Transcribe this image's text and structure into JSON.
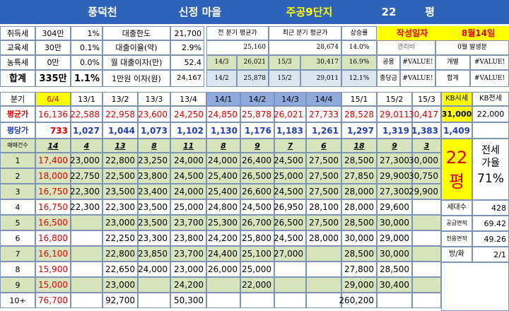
{
  "header": {
    "complex": "풍덕천",
    "village": "신정 마을",
    "apt": "주공9단지",
    "size": "22",
    "unit": "평"
  },
  "costs": [
    {
      "label": "취득세",
      "amount": "304만",
      "rate": "1%"
    },
    {
      "label": "교육세",
      "amount": "30만",
      "rate": "0.1%"
    },
    {
      "label": "농특세",
      "amount": "0만",
      "rate": "0.0%"
    },
    {
      "label": "합계",
      "amount": "335만",
      "rate": "1.1%"
    }
  ],
  "loan": [
    {
      "label": "대출한도",
      "value": "21,700"
    },
    {
      "label": "대출이율(약)",
      "value": "2.9%"
    },
    {
      "label": "월 대출이자(만)",
      "value": "52.4"
    },
    {
      "label": "1만원 이자(원)",
      "value": "24,167"
    }
  ],
  "summary": {
    "head_prev": "전 분기 평균가",
    "head_recent": "최근 분기 평균가",
    "head_rate": "상승률",
    "prev_value": "25,160",
    "recent_value": "28,674",
    "rate_value": "14.0%",
    "row3": [
      "14/3",
      "26,021",
      "15/3",
      "30,417",
      "16.9%"
    ],
    "row4": [
      "14/2",
      "25,878",
      "15/2",
      "29,011",
      "12.1%"
    ]
  },
  "writer": {
    "label": "작성일자",
    "date": "8월14일",
    "mgmt_label": "관리비",
    "mgmt_value": "0월 발생분",
    "r3": [
      "공용",
      "#VALUE!",
      "개별",
      "#VALUE!"
    ],
    "r4": [
      "충당금",
      "#VALUE!",
      "합계",
      "#VALUE!"
    ]
  },
  "quarters": {
    "label": "분기",
    "cols": [
      "6/4",
      "13/1",
      "13/2",
      "13/3",
      "13/4",
      "14/1",
      "14/2",
      "14/3",
      "14/4",
      "15/1",
      "15/2",
      "15/3"
    ],
    "kb_sale": "KB시세",
    "kb_jeonse": "KB전세"
  },
  "avg_price": {
    "label": "평균가",
    "values": [
      "16,136",
      "22,588",
      "22,958",
      "23,600",
      "24,250",
      "24,850",
      "25,878",
      "26,021",
      "27,733",
      "28,528",
      "29,011",
      "30,417"
    ],
    "kb_sale": "31,000",
    "kb_jeonse": "22,000"
  },
  "per_pyeong": {
    "label": "평당가",
    "values": [
      "733",
      "1,027",
      "1,044",
      "1,073",
      "1,102",
      "1,130",
      "1,176",
      "1,183",
      "1,261",
      "1,297",
      "1,319",
      "1,383"
    ],
    "kb": "1,409"
  },
  "trades": {
    "label": "매매건수",
    "counts": [
      "14",
      "4",
      "13",
      "8",
      "11",
      "8",
      "9",
      "7",
      "6",
      "18",
      "9",
      "3"
    ]
  },
  "rows": [
    {
      "n": "1",
      "v": [
        "17,400",
        "23,000",
        "22,800",
        "23,250",
        "24,000",
        "24,000",
        "26,400",
        "24,500",
        "27,500",
        "28,500",
        "27,300",
        "30,000"
      ]
    },
    {
      "n": "2",
      "v": [
        "18,000",
        "22,750",
        "22,500",
        "23,800",
        "24,500",
        "25,400",
        "26,500",
        "25,000",
        "27,500",
        "27,850",
        "29,900",
        "30,750"
      ]
    },
    {
      "n": "3",
      "v": [
        "16,750",
        "22,300",
        "23,500",
        "23,400",
        "24,000",
        "25,400",
        "26,600",
        "24,500",
        "27,500",
        "28,000",
        "27,300",
        "29,900"
      ]
    },
    {
      "n": "4",
      "v": [
        "16,750",
        "22,300",
        "22,300",
        "23,500",
        "25,000",
        "24,800",
        "24,500",
        "26,950",
        "28,100",
        "28,000",
        "29,600",
        ""
      ]
    },
    {
      "n": "5",
      "v": [
        "16,500",
        "",
        "23,000",
        "23,500",
        "23,700",
        "25,300",
        "26,700",
        "26,500",
        "27,500",
        "28,500",
        "30,000",
        ""
      ]
    },
    {
      "n": "6",
      "v": [
        "16,800",
        "",
        "22,250",
        "23,300",
        "23,800",
        "24,200",
        "25,800",
        "24,500",
        "28,000",
        "30,000",
        "29,000",
        ""
      ]
    },
    {
      "n": "7",
      "v": [
        "16,100",
        "",
        "22,800",
        "23,850",
        "23,700",
        "24,400",
        "25,100",
        "27,000",
        "",
        "28,500",
        "30,000",
        ""
      ]
    },
    {
      "n": "8",
      "v": [
        "15,900",
        "",
        "22,650",
        "24,000",
        "23,000",
        "26,000",
        "25,000",
        "",
        "",
        "27,800",
        "28,500",
        ""
      ]
    },
    {
      "n": "9",
      "v": [
        "15,000",
        "",
        "23,000",
        "",
        "24,200",
        "",
        "22,000",
        "",
        "",
        "29,000",
        "30,400",
        ""
      ]
    },
    {
      "n": "10+",
      "v": [
        "76,700",
        "",
        "92,700",
        "",
        "50,300",
        "",
        "",
        "",
        "",
        "260,200",
        "",
        ""
      ]
    }
  ],
  "side": {
    "size": "22",
    "unit": "평",
    "jeonse_label": "전세",
    "ratio_label": "가율",
    "ratio": "71%",
    "info": [
      {
        "label": "세대수",
        "value": "428"
      },
      {
        "label": "공급면적",
        "value": "69.42"
      },
      {
        "label": "전용면적",
        "value": "49.26"
      },
      {
        "label": "방/화",
        "value": "2/1"
      }
    ]
  }
}
